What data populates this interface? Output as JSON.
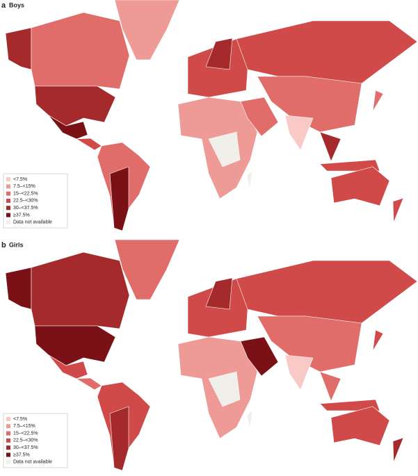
{
  "panels": [
    {
      "letter": "a",
      "title": "Boys"
    },
    {
      "letter": "b",
      "title": "Girls"
    }
  ],
  "legend": [
    {
      "label": "<7.5%",
      "color": "#f9c9c6"
    },
    {
      "label": "7.5–<15%",
      "color": "#ee9b98"
    },
    {
      "label": "15–<22.5%",
      "color": "#e06d6a"
    },
    {
      "label": "22.5–<30%",
      "color": "#cf4a48"
    },
    {
      "label": "30–<37.5%",
      "color": "#a52a2b"
    },
    {
      "label": "≥37.5%",
      "color": "#7a1116"
    },
    {
      "label": "Data not available",
      "color": "#f0efea"
    }
  ]
}
